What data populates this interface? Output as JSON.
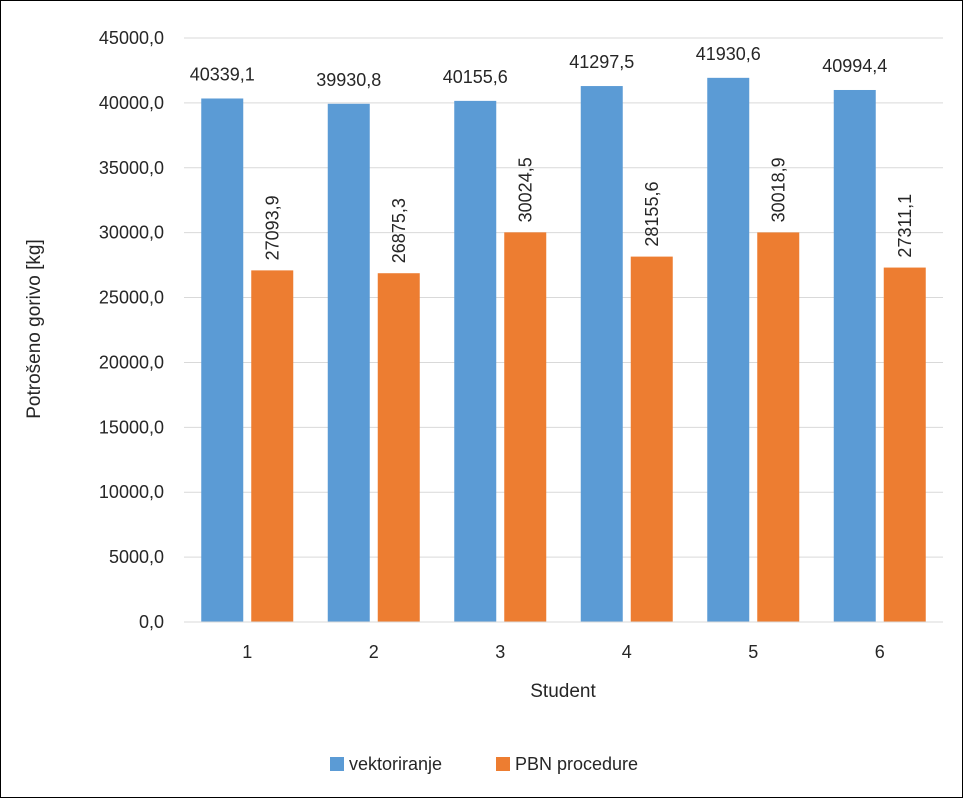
{
  "chart_data": {
    "type": "bar",
    "xlabel": "Student",
    "ylabel": "Potrošeno gorivo [kg]",
    "categories": [
      "1",
      "2",
      "3",
      "4",
      "5",
      "6"
    ],
    "ylim": [
      0,
      45000
    ],
    "yticks": [
      0,
      5000,
      10000,
      15000,
      20000,
      25000,
      30000,
      35000,
      40000,
      45000
    ],
    "ytick_labels": [
      "0,0",
      "5000,0",
      "10000,0",
      "15000,0",
      "20000,0",
      "25000,0",
      "30000,0",
      "35000,0",
      "40000,0",
      "45000,0"
    ],
    "grid": true,
    "legend_position": "bottom",
    "series": [
      {
        "name": "vektoriranje",
        "color": "#5b9bd5",
        "values": [
          40339.1,
          39930.8,
          40155.6,
          41297.5,
          41930.6,
          40994.4
        ],
        "value_labels": [
          "40339,1",
          "39930,8",
          "40155,6",
          "41297,5",
          "41930,6",
          "40994,4"
        ],
        "label_orientation": "horizontal"
      },
      {
        "name": "PBN procedure",
        "color": "#ed7d31",
        "values": [
          27093.9,
          26875.3,
          30024.5,
          28155.6,
          30018.9,
          27311.1
        ],
        "value_labels": [
          "27093,9",
          "26875,3",
          "30024,5",
          "28155,6",
          "30018,9",
          "27311,1"
        ],
        "label_orientation": "vertical"
      }
    ]
  }
}
